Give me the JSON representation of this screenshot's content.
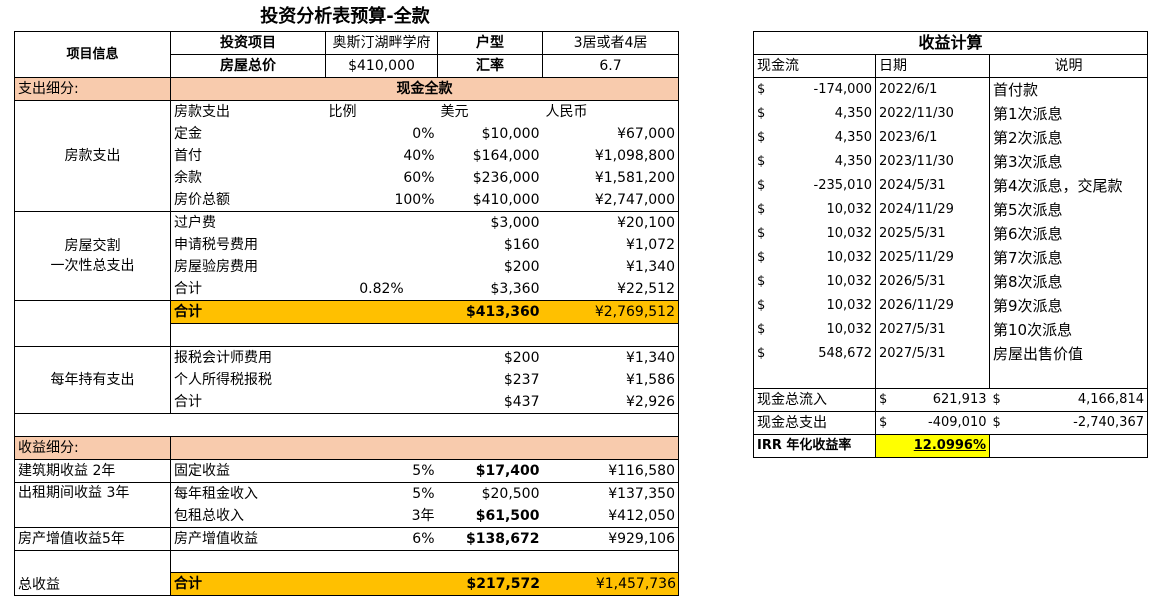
{
  "title": "投资分析表预算-全款",
  "info": {
    "label": "项目信息",
    "investment_label": "投资项目",
    "investment_value": "奥斯汀湖畔学府",
    "type_label": "户型",
    "type_value": "3居或者4居",
    "price_label": "房屋总价",
    "price_value": "$410,000",
    "rate_label": "汇率",
    "rate_value": "6.7"
  },
  "expense": {
    "section_label": "支出细分:",
    "mode_label": "现金全款",
    "house_label": "房款支出",
    "col_headers": [
      "房款支出",
      "比例",
      "美元",
      "人民币"
    ],
    "house_rows": [
      {
        "name": "定金",
        "ratio": "0%",
        "usd": "$10,000",
        "rmb": "¥67,000"
      },
      {
        "name": "首付",
        "ratio": "40%",
        "usd": "$164,000",
        "rmb": "¥1,098,800"
      },
      {
        "name": "余款",
        "ratio": "60%",
        "usd": "$236,000",
        "rmb": "¥1,581,200"
      },
      {
        "name": "房价总额",
        "ratio": "100%",
        "usd": "$410,000",
        "rmb": "¥2,747,000"
      }
    ],
    "closing_label_1": "房屋交割",
    "closing_label_2": "一次性总支出",
    "closing_rows": [
      {
        "name": "过户费",
        "ratio": "",
        "usd": "$3,000",
        "rmb": "¥20,100"
      },
      {
        "name": "申请税号费用",
        "ratio": "",
        "usd": "$160",
        "rmb": "¥1,072"
      },
      {
        "name": "房屋验房费用",
        "ratio": "",
        "usd": "$200",
        "rmb": "¥1,340"
      },
      {
        "name": "合计",
        "ratio": "0.82%",
        "usd": "$3,360",
        "rmb": "¥22,512"
      }
    ],
    "total": {
      "name": "合计",
      "usd": "$413,360",
      "rmb": "¥2,769,512"
    },
    "annual_label": "每年持有支出",
    "annual_rows": [
      {
        "name": "报税会计师费用",
        "usd": "$200",
        "rmb": "¥1,340"
      },
      {
        "name": "个人所得税报税",
        "usd": "$237",
        "rmb": "¥1,586"
      },
      {
        "name": "合计",
        "usd": "$437",
        "rmb": "¥2,926"
      }
    ]
  },
  "income": {
    "section_label": "收益细分:",
    "rows": [
      {
        "cat": "建筑期收益 2年",
        "name": "固定收益",
        "ratio": "5%",
        "usd": "$17,400",
        "rmb": "¥116,580"
      },
      {
        "cat": "出租期间收益 3年",
        "name": "每年租金收入",
        "ratio": "5%",
        "usd": "$20,500",
        "rmb": "¥137,350"
      },
      {
        "cat": "",
        "name": "包租总收入",
        "ratio": "3年",
        "usd": "$61,500",
        "rmb": "¥412,050"
      },
      {
        "cat": "房产增值收益5年",
        "name": "房产增值收益",
        "ratio": "6%",
        "usd": "$138,672",
        "rmb": "¥929,106"
      }
    ],
    "total_label": "总收益",
    "total": {
      "name": "合计",
      "usd": "$217,572",
      "rmb": "¥1,457,736"
    }
  },
  "returns": {
    "title": "收益计算",
    "headers": [
      "现金流",
      "日期",
      "说明"
    ],
    "flows": [
      {
        "sym": "$",
        "amount": "-174,000",
        "date": "2022/6/1",
        "desc": "首付款"
      },
      {
        "sym": "$",
        "amount": "4,350",
        "date": "2022/11/30",
        "desc": "第1次派息"
      },
      {
        "sym": "$",
        "amount": "4,350",
        "date": "2023/6/1",
        "desc": "第2次派息"
      },
      {
        "sym": "$",
        "amount": "4,350",
        "date": "2023/11/30",
        "desc": "第3次派息"
      },
      {
        "sym": "$",
        "amount": "-235,010",
        "date": "2024/5/31",
        "desc": "第4次派息，交尾款"
      },
      {
        "sym": "$",
        "amount": "10,032",
        "date": "2024/11/29",
        "desc": "第5次派息"
      },
      {
        "sym": "$",
        "amount": "10,032",
        "date": "2025/5/31",
        "desc": "第6次派息"
      },
      {
        "sym": "$",
        "amount": "10,032",
        "date": "2025/11/29",
        "desc": "第7次派息"
      },
      {
        "sym": "$",
        "amount": "10,032",
        "date": "2026/5/31",
        "desc": "第8次派息"
      },
      {
        "sym": "$",
        "amount": "10,032",
        "date": "2026/11/29",
        "desc": "第9次派息"
      },
      {
        "sym": "$",
        "amount": "10,032",
        "date": "2027/5/31",
        "desc": "第10次派息"
      },
      {
        "sym": "$",
        "amount": "548,672",
        "date": "2027/5/31",
        "desc": "房屋出售价值"
      }
    ],
    "inflow": {
      "label": "现金总流入",
      "sym": "$",
      "usd": "621,913",
      "sym2": "$",
      "rmb": "4,166,814"
    },
    "outflow": {
      "label": "现金总支出",
      "sym": "$",
      "usd": "-409,010",
      "sym2": "$",
      "rmb": "-2,740,367"
    },
    "irr": {
      "label": "IRR 年化收益率",
      "value": "12.0996%"
    }
  },
  "colors": {
    "peach": "#f8cbad",
    "orange": "#ffc000",
    "yellow": "#ffff00"
  }
}
